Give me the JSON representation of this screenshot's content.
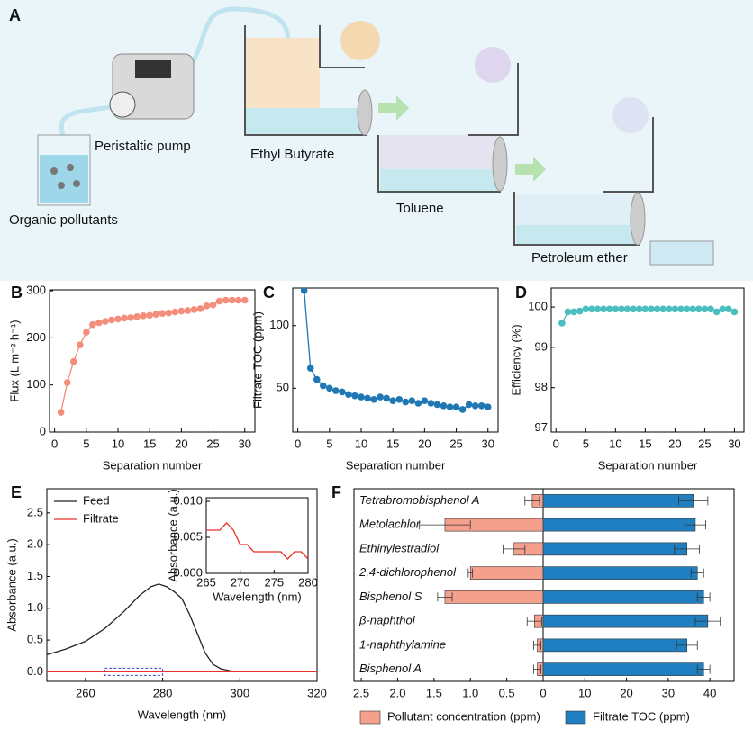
{
  "diagram": {
    "label": "A",
    "texts": [
      "Peristaltic pump",
      "Organic pollutants",
      "Ethyl Butyrate",
      "Toluene",
      "Petroleum ether"
    ]
  },
  "chart_data": [
    {
      "type": "line",
      "label": "B",
      "xlabel": "Separation number",
      "ylabel": "Flux (L m⁻² h⁻¹)",
      "markers": true,
      "color": "#f48e7c",
      "x": [
        1,
        2,
        3,
        4,
        5,
        6,
        7,
        8,
        9,
        10,
        11,
        12,
        13,
        14,
        15,
        16,
        17,
        18,
        19,
        20,
        21,
        22,
        23,
        24,
        25,
        26,
        27,
        28,
        29,
        30
      ],
      "values": [
        42,
        105,
        150,
        185,
        212,
        228,
        232,
        235,
        238,
        240,
        242,
        243,
        245,
        247,
        248,
        250,
        252,
        253,
        255,
        257,
        258,
        260,
        262,
        268,
        270,
        278,
        280,
        280,
        280,
        280
      ],
      "xlim": [
        -0.8,
        31.6
      ],
      "xticks": [
        0,
        5,
        10,
        15,
        20,
        25,
        30
      ],
      "ylim": [
        0,
        302
      ],
      "yticks": [
        0,
        100,
        200,
        300
      ]
    },
    {
      "type": "line",
      "label": "C",
      "xlabel": "Separation number",
      "ylabel": "Filtrate TOC (ppm)",
      "markers": true,
      "color": "#1f78b4",
      "x": [
        1,
        2,
        3,
        4,
        5,
        6,
        7,
        8,
        9,
        10,
        11,
        12,
        13,
        14,
        15,
        16,
        17,
        18,
        19,
        20,
        21,
        22,
        23,
        24,
        25,
        26,
        27,
        28,
        29,
        30
      ],
      "values": [
        128,
        66,
        57,
        52,
        50,
        48,
        47,
        45,
        44,
        43,
        42,
        41,
        43,
        42,
        40,
        41,
        39,
        40,
        38,
        40,
        38,
        37,
        36,
        35,
        35,
        33,
        37,
        36,
        36,
        35
      ],
      "xlim": [
        -0.8,
        31.6
      ],
      "xticks": [
        0,
        5,
        10,
        15,
        20,
        25,
        30
      ],
      "ylim": [
        15,
        130
      ],
      "yticks": [
        50,
        100
      ]
    },
    {
      "type": "line",
      "label": "D",
      "xlabel": "Separation number",
      "ylabel": "Efficiency (%)",
      "markers": true,
      "color": "#4bbfc0",
      "x": [
        1,
        2,
        3,
        4,
        5,
        6,
        7,
        8,
        9,
        10,
        11,
        12,
        13,
        14,
        15,
        16,
        17,
        18,
        19,
        20,
        21,
        22,
        23,
        24,
        25,
        26,
        27,
        28,
        29,
        30
      ],
      "values": [
        99.6,
        99.88,
        99.88,
        99.9,
        99.95,
        99.95,
        99.95,
        99.95,
        99.95,
        99.95,
        99.95,
        99.95,
        99.95,
        99.95,
        99.95,
        99.95,
        99.95,
        99.95,
        99.95,
        99.95,
        99.95,
        99.95,
        99.95,
        99.95,
        99.95,
        99.95,
        99.88,
        99.95,
        99.95,
        99.88
      ],
      "xlim": [
        -0.8,
        31.6
      ],
      "xticks": [
        0,
        5,
        10,
        15,
        20,
        25,
        30
      ],
      "ylim": [
        96.9,
        100.47
      ],
      "yticks": [
        97,
        98,
        99,
        100
      ]
    },
    {
      "type": "line",
      "label": "E",
      "xlabel": "Wavelength (nm)",
      "ylabel": "Absorbance (a.u.)",
      "legend": "upper left",
      "xlim": [
        250,
        320
      ],
      "xticks": [
        260,
        280,
        300,
        320
      ],
      "ylim": [
        -0.15,
        2.88
      ],
      "yticks": [
        {
          "value": 0,
          "label": "0.0"
        },
        0.5,
        {
          "value": 1,
          "label": "1.0"
        },
        1.5,
        {
          "value": 2,
          "label": "2.0"
        },
        2.5
      ],
      "series": [
        {
          "name": "Feed",
          "color": "#222222",
          "x": [
            250,
            255,
            260,
            265,
            270,
            274,
            277,
            279,
            281,
            283,
            285,
            287,
            289,
            291,
            293,
            295,
            298,
            300,
            310,
            320
          ],
          "values": [
            0.27,
            0.36,
            0.48,
            0.68,
            0.95,
            1.2,
            1.34,
            1.38,
            1.34,
            1.26,
            1.15,
            0.9,
            0.6,
            0.3,
            0.12,
            0.05,
            0.01,
            0,
            0,
            0
          ]
        },
        {
          "name": "Filtrate",
          "color": "#e8322a",
          "x": [
            250,
            260,
            270,
            280,
            290,
            300,
            310,
            320
          ],
          "values": [
            0,
            0,
            0,
            0,
            0,
            0,
            0,
            0
          ]
        }
      ],
      "inset": {
        "type": "line",
        "xlabel": "Wavelength (nm)",
        "ylabel": "Absorbance (a.u.)",
        "xlim": [
          265,
          280
        ],
        "xticks": [
          265,
          270,
          275,
          280
        ],
        "ylim": [
          0,
          0.0105
        ],
        "yticks": [
          {
            "value": 0,
            "label": "0.000"
          },
          0.005,
          {
            "value": 0.01,
            "label": "0.010"
          }
        ],
        "series": [
          {
            "color": "#e8322a",
            "x": [
              265,
              266,
              267,
              268,
              269,
              270,
              271,
              272,
              273,
              274,
              275,
              276,
              277,
              278,
              279,
              280
            ],
            "values": [
              0.006,
              0.006,
              0.006,
              0.007,
              0.006,
              0.004,
              0.004,
              0.003,
              0.003,
              0.003,
              0.003,
              0.003,
              0.002,
              0.003,
              0.003,
              0.002
            ]
          }
        ]
      }
    },
    {
      "type": "diverging_bar",
      "label": "F",
      "legend": "bottom",
      "categories": [
        "Tetrabromobisphenol A",
        "Metolachlor",
        "Ethinylestradiol",
        "2,4-dichlorophenol",
        "Bisphenol S",
        "β-naphthol",
        "1-naphthylamine",
        "Bisphenol A"
      ],
      "series": [
        {
          "name": "Pollutant concentration (ppm)",
          "color": "#f4a08c",
          "values": [
            0.15,
            1.35,
            0.4,
            1.0,
            1.35,
            0.12,
            0.08,
            0.08
          ],
          "errors": [
            0.1,
            0.35,
            0.15,
            0.03,
            0.1,
            0.1,
            0.05,
            0.05
          ],
          "xlim": [
            0,
            2.6
          ],
          "xticks": [
            2.5,
            {
              "value": 2,
              "label": "2.0"
            },
            1.5,
            {
              "value": 1,
              "label": "1.0"
            },
            0.5,
            0
          ]
        },
        {
          "name": "Filtrate TOC (ppm)",
          "color": "#1f7fc0",
          "values": [
            36,
            36.5,
            34.5,
            37,
            38.5,
            39.5,
            34.5,
            38.5
          ],
          "errors": [
            3.5,
            2.5,
            3,
            1.5,
            1.5,
            3,
            2.5,
            1.5
          ],
          "xlim": [
            0,
            45.8
          ],
          "xticks": [
            10,
            20,
            30,
            40
          ]
        }
      ]
    }
  ]
}
